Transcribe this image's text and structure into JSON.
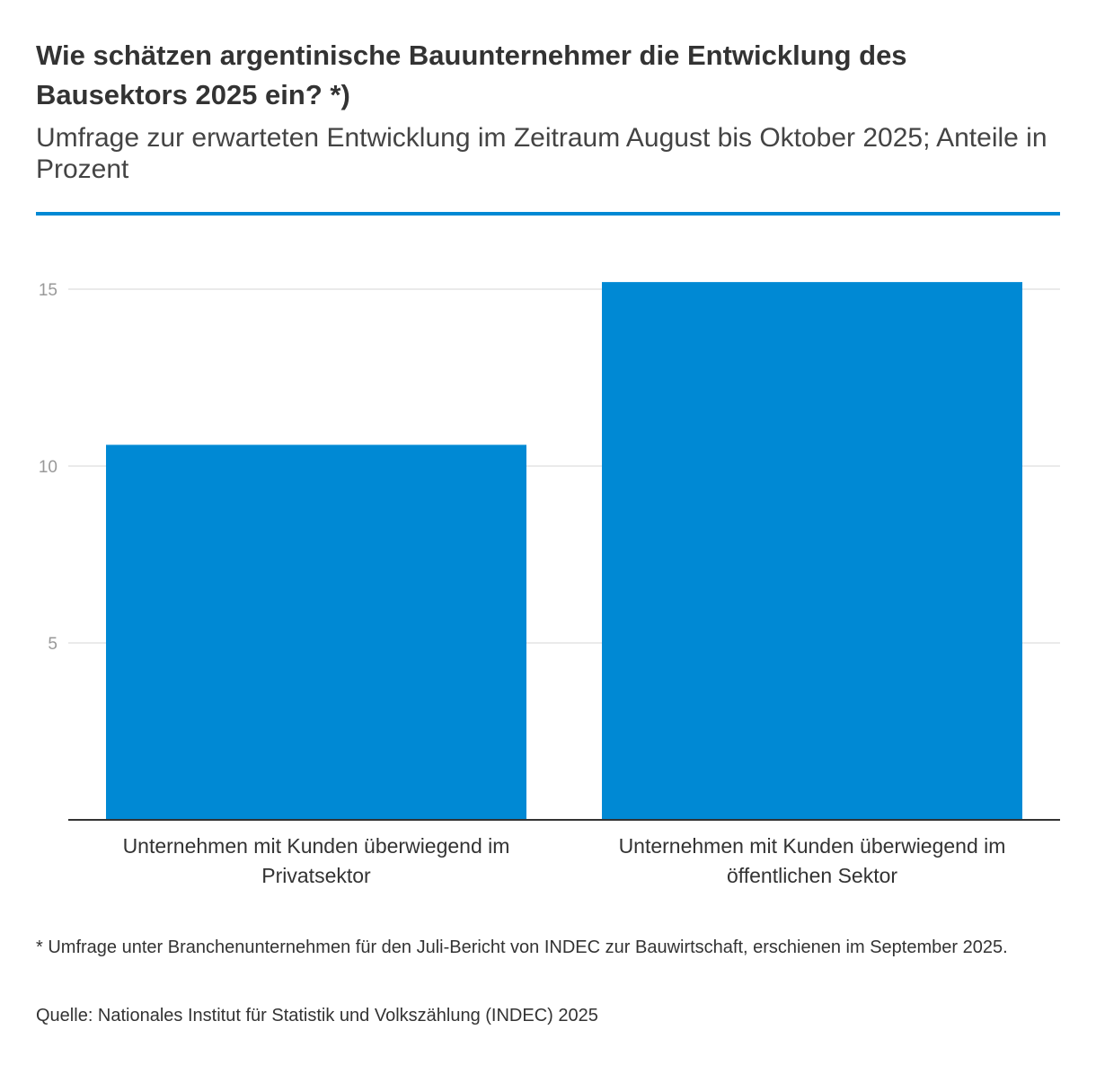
{
  "header": {
    "title": "Wie schätzen argentinische Bauunternehmer die Entwicklung des Bausektors 2025 ein? *)",
    "subtitle": "Umfrage zur erwarteten Entwicklung im Zeitraum August bis Oktober 2025; Anteile in Prozent"
  },
  "colors": {
    "accent": "#0089d4",
    "bar": "#0089d4",
    "grid": "#e3e3e3",
    "axis": "#333333",
    "tick": "#999999"
  },
  "chart_data": {
    "type": "bar",
    "title": "Wie schätzen argentinische Bauunternehmer die Entwicklung des Bausektors 2025 ein? *)",
    "subtitle": "Umfrage zur erwarteten Entwicklung im Zeitraum August bis Oktober 2025; Anteile in Prozent",
    "categories": [
      [
        "Unternehmen mit Kunden überwiegend im",
        "Privatsektor"
      ],
      [
        "Unternehmen mit Kunden überwiegend im",
        "öffentlichen Sektor"
      ]
    ],
    "values": [
      10.6,
      15.2
    ],
    "xlabel": "",
    "ylabel": "",
    "ylim": [
      0,
      15.2
    ],
    "yticks": [
      5,
      10,
      15
    ],
    "grid": true,
    "legend": "none"
  },
  "footer": {
    "footnote": "* Umfrage unter Branchenunternehmen für den Juli-Bericht von INDEC zur Bauwirtschaft, erschienen im September 2025.",
    "source": "Quelle: Nationales Institut für Statistik und Volkszählung (INDEC) 2025"
  }
}
